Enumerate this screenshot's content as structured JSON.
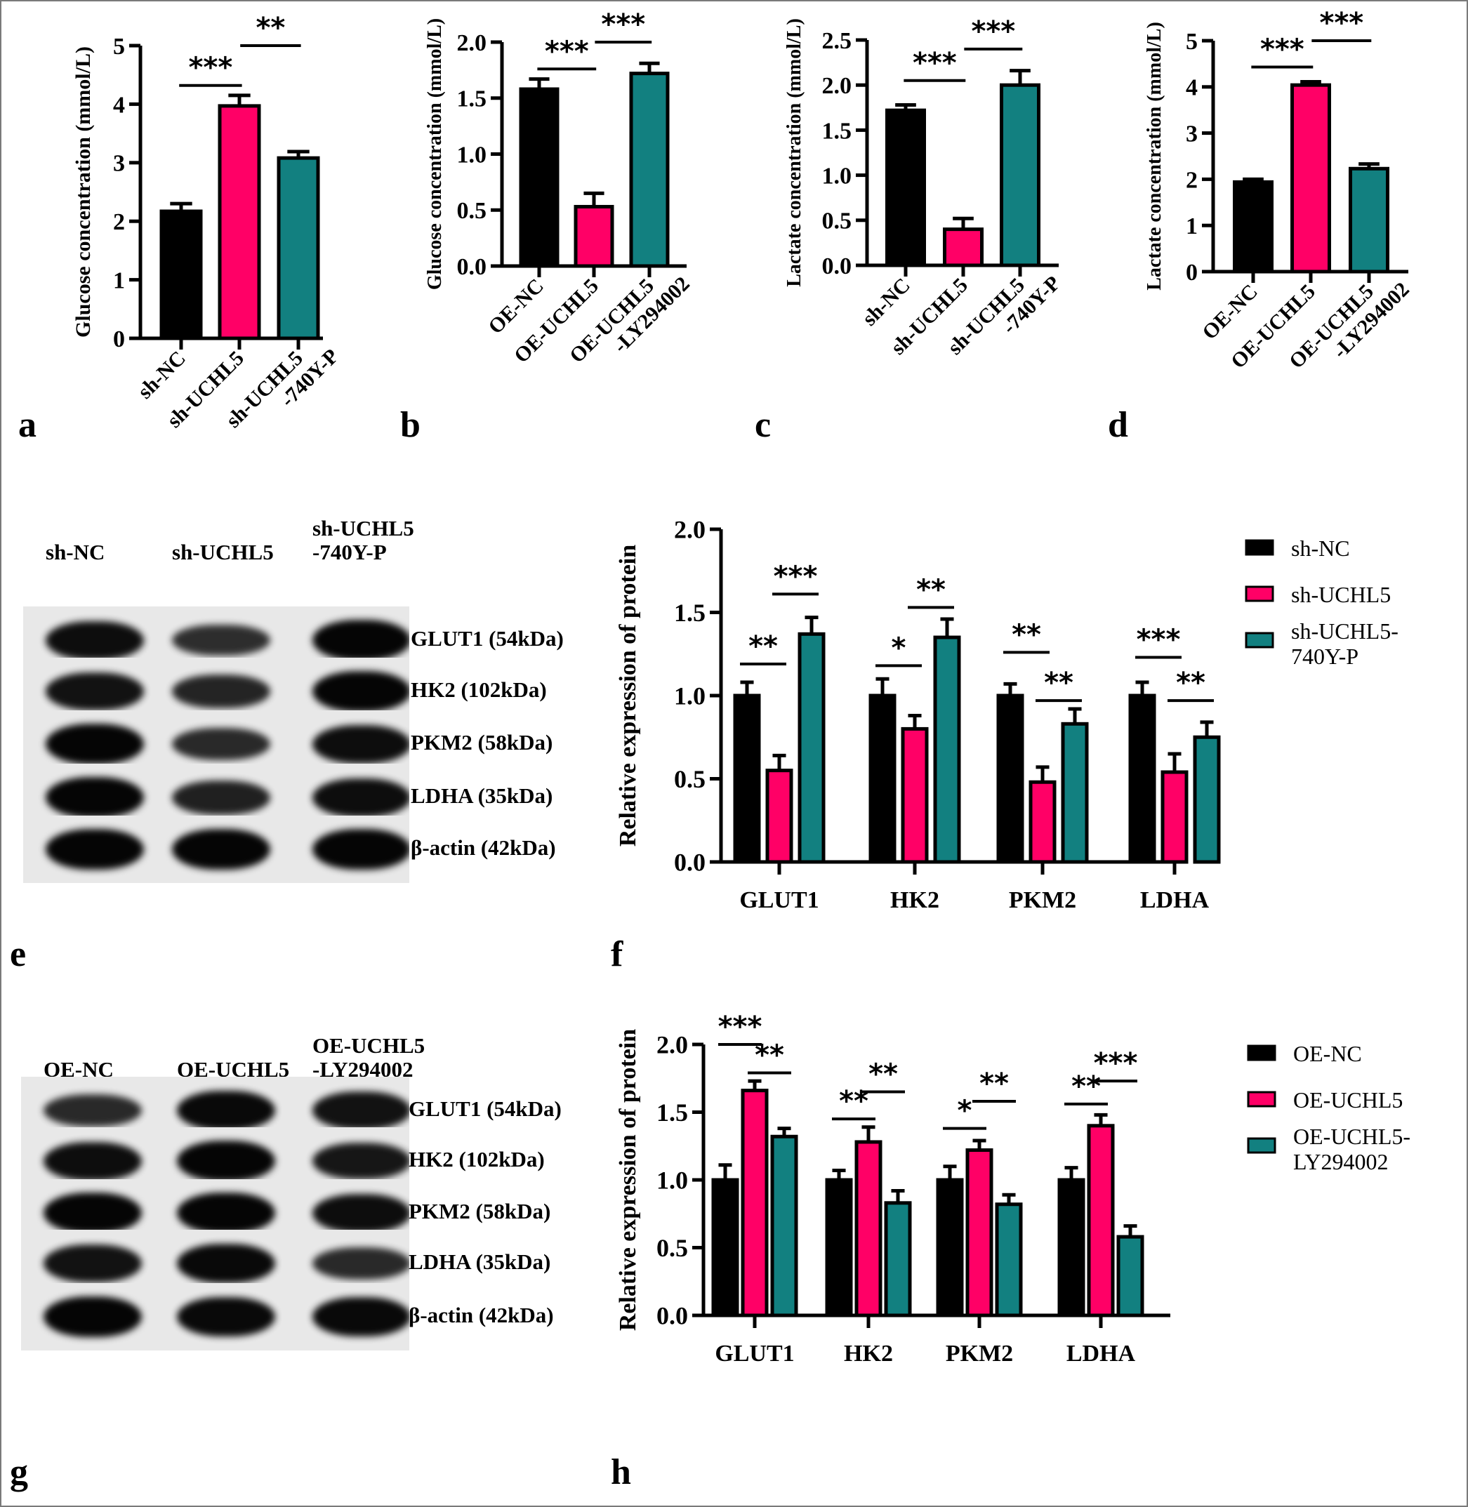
{
  "colors": {
    "group1": "#000000",
    "group2": "#ff0066",
    "group3": "#128080",
    "axis": "#000000"
  },
  "panel_letters": [
    "a",
    "b",
    "c",
    "d",
    "e",
    "f",
    "g",
    "h"
  ],
  "chart_data": [
    {
      "panel": "a",
      "type": "bar",
      "title": "",
      "ylabel": "Glucose concentration (mmol/L)",
      "categories": [
        "sh-NC",
        "sh-UCHL5",
        "sh-UCHL5 -740Y-P"
      ],
      "values": [
        2.17,
        3.97,
        3.08
      ],
      "errors": [
        0.13,
        0.18,
        0.11
      ],
      "yticks": [
        "0",
        "1",
        "2",
        "3",
        "4",
        "5"
      ],
      "ylim": [
        0,
        5
      ],
      "significance": [
        {
          "from": 0,
          "to": 1,
          "label": "***",
          "y": 4.32
        },
        {
          "from": 1,
          "to": 2,
          "label": "**",
          "y": 5.0
        }
      ]
    },
    {
      "panel": "b",
      "type": "bar",
      "ylabel": "Glucose concentration (mmol/L)",
      "categories": [
        "OE-NC",
        "OE-UCHL5",
        "OE-UCHL5 -LY294002"
      ],
      "values": [
        1.58,
        0.53,
        1.72
      ],
      "errors": [
        0.09,
        0.12,
        0.09
      ],
      "yticks": [
        "0.0",
        "0.5",
        "1.0",
        "1.5",
        "2.0"
      ],
      "ylim": [
        0,
        2.0
      ],
      "significance": [
        {
          "from": 0,
          "to": 1,
          "label": "***",
          "y": 1.76
        },
        {
          "from": 1,
          "to": 2,
          "label": "***",
          "y": 2.0
        }
      ]
    },
    {
      "panel": "c",
      "type": "bar",
      "ylabel": "Lactate concentration (mmol/L)",
      "categories": [
        "sh-NC",
        "sh-UCHL5",
        "sh-UCHL5 -740Y-P"
      ],
      "values": [
        1.72,
        0.4,
        2.0
      ],
      "errors": [
        0.06,
        0.12,
        0.16
      ],
      "yticks": [
        "0.0",
        "0.5",
        "1.0",
        "1.5",
        "2.0",
        "2.5"
      ],
      "ylim": [
        0,
        2.5
      ],
      "significance": [
        {
          "from": 0,
          "to": 1,
          "label": "***",
          "y": 2.05
        },
        {
          "from": 1,
          "to": 2,
          "label": "***",
          "y": 2.4
        }
      ]
    },
    {
      "panel": "d",
      "type": "bar",
      "ylabel": "Lactate concentration (mmol/L)",
      "categories": [
        "OE-NC",
        "OE-UCHL5",
        "OE-UCHL5 -LY294002"
      ],
      "values": [
        1.94,
        4.04,
        2.23
      ],
      "errors": [
        0.06,
        0.07,
        0.1
      ],
      "yticks": [
        "0",
        "1",
        "2",
        "3",
        "4",
        "5"
      ],
      "ylim": [
        0,
        5
      ],
      "significance": [
        {
          "from": 0,
          "to": 1,
          "label": "***",
          "y": 4.43
        },
        {
          "from": 1,
          "to": 2,
          "label": "***",
          "y": 5.0
        }
      ]
    },
    {
      "panel": "f",
      "type": "bar",
      "ylabel": "Relative expression of protein",
      "categories": [
        "GLUT1",
        "HK2",
        "PKM2",
        "LDHA"
      ],
      "series": [
        {
          "name": "sh-NC",
          "values": [
            1.0,
            1.0,
            1.0,
            1.0
          ],
          "errors": [
            0.08,
            0.1,
            0.07,
            0.08
          ]
        },
        {
          "name": "sh-UCHL5",
          "values": [
            0.55,
            0.8,
            0.48,
            0.54
          ],
          "errors": [
            0.09,
            0.08,
            0.09,
            0.11
          ]
        },
        {
          "name": "sh-UCHL5-740Y-P",
          "values": [
            1.37,
            1.35,
            0.83,
            0.75
          ],
          "errors": [
            0.1,
            0.11,
            0.09,
            0.09
          ]
        }
      ],
      "legend": [
        "sh-NC",
        "sh-UCHL5",
        "sh-UCHL5-\n740Y-P"
      ],
      "yticks": [
        "0.0",
        "0.5",
        "1.0",
        "1.5",
        "2.0"
      ],
      "ylim": [
        0,
        2.0
      ],
      "significance": [
        {
          "cat": 0,
          "from": 0,
          "to": 1,
          "label": "**",
          "y": 1.19
        },
        {
          "cat": 0,
          "from": 1,
          "to": 2,
          "label": "***",
          "y": 1.61
        },
        {
          "cat": 1,
          "from": 0,
          "to": 1,
          "label": "*",
          "y": 1.18
        },
        {
          "cat": 1,
          "from": 1,
          "to": 2,
          "label": "**",
          "y": 1.53
        },
        {
          "cat": 2,
          "from": 0,
          "to": 1,
          "label": "**",
          "y": 1.26
        },
        {
          "cat": 2,
          "from": 1,
          "to": 2,
          "label": "**",
          "y": 0.97
        },
        {
          "cat": 3,
          "from": 0,
          "to": 1,
          "label": "***",
          "y": 1.23
        },
        {
          "cat": 3,
          "from": 1,
          "to": 2,
          "label": "**",
          "y": 0.97
        }
      ]
    },
    {
      "panel": "h",
      "type": "bar",
      "ylabel": "Relative expression of protein",
      "categories": [
        "GLUT1",
        "HK2",
        "PKM2",
        "LDHA"
      ],
      "series": [
        {
          "name": "OE-NC",
          "values": [
            1.0,
            1.0,
            1.0,
            1.0
          ],
          "errors": [
            0.11,
            0.07,
            0.1,
            0.09
          ]
        },
        {
          "name": "OE-UCHL5",
          "values": [
            1.66,
            1.28,
            1.22,
            1.4
          ],
          "errors": [
            0.07,
            0.11,
            0.07,
            0.08
          ]
        },
        {
          "name": "OE-UCHL5-LY294002",
          "values": [
            1.32,
            0.83,
            0.82,
            0.58
          ],
          "errors": [
            0.06,
            0.09,
            0.07,
            0.08
          ]
        }
      ],
      "legend": [
        "OE-NC",
        "OE-UCHL5",
        "OE-UCHL5-\nLY294002"
      ],
      "yticks": [
        "0.0",
        "0.5",
        "1.0",
        "1.5",
        "2.0"
      ],
      "ylim": [
        0,
        2.0
      ],
      "significance": [
        {
          "cat": 0,
          "from": 0,
          "to": 1,
          "label": "***",
          "y": 2.0
        },
        {
          "cat": 0,
          "from": 1,
          "to": 2,
          "label": "**",
          "y": 1.79
        },
        {
          "cat": 1,
          "from": 0,
          "to": 1,
          "label": "**",
          "y": 1.45
        },
        {
          "cat": 1,
          "from": 1,
          "to": 2,
          "label": "**",
          "y": 1.65
        },
        {
          "cat": 2,
          "from": 0,
          "to": 1,
          "label": "*",
          "y": 1.38
        },
        {
          "cat": 2,
          "from": 1,
          "to": 2,
          "label": "**",
          "y": 1.58
        },
        {
          "cat": 3,
          "from": 0,
          "to": 1,
          "label": "**",
          "y": 1.56
        },
        {
          "cat": 3,
          "from": 1,
          "to": 2,
          "label": "***",
          "y": 1.73
        }
      ]
    }
  ],
  "blots": [
    {
      "panel": "e",
      "columns": [
        "sh-NC",
        "sh-UCHL5",
        "sh-UCHL5\n-740Y-P"
      ],
      "rows": [
        {
          "label": "GLUT1 (54kDa)",
          "intensity": [
            0.9,
            0.55,
            1.0
          ]
        },
        {
          "label": "HK2 (102kDa)",
          "intensity": [
            0.85,
            0.65,
            1.0
          ]
        },
        {
          "label": "PKM2 (58kDa)",
          "intensity": [
            1.0,
            0.6,
            0.9
          ]
        },
        {
          "label": "LDHA (35kDa)",
          "intensity": [
            1.0,
            0.7,
            0.9
          ]
        },
        {
          "label": "β-actin (42kDa)",
          "intensity": [
            1.0,
            1.0,
            1.0
          ]
        }
      ]
    },
    {
      "panel": "g",
      "columns": [
        "OE-NC",
        "OE-UCHL5",
        "OE-UCHL5\n-LY294002"
      ],
      "rows": [
        {
          "label": "GLUT1 (54kDa)",
          "intensity": [
            0.6,
            0.95,
            0.85
          ]
        },
        {
          "label": "HK2 (102kDa)",
          "intensity": [
            0.9,
            1.0,
            0.8
          ]
        },
        {
          "label": "PKM2 (58kDa)",
          "intensity": [
            1.0,
            1.0,
            0.9
          ]
        },
        {
          "label": "LDHA (35kDa)",
          "intensity": [
            0.85,
            0.95,
            0.6
          ]
        },
        {
          "label": "β-actin (42kDa)",
          "intensity": [
            1.0,
            0.95,
            0.95
          ]
        }
      ]
    }
  ]
}
